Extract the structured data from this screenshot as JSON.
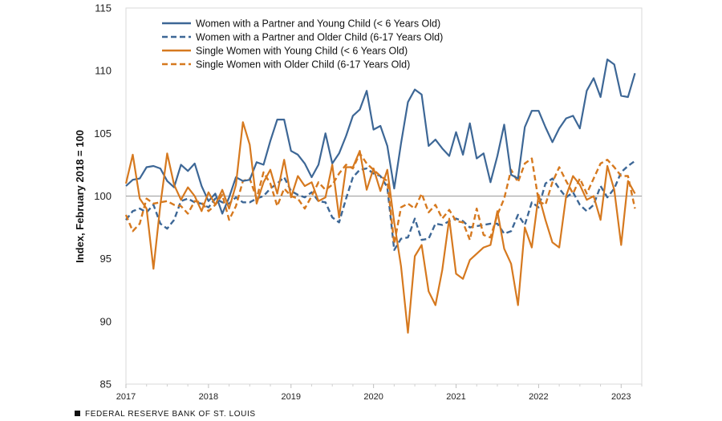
{
  "chart_data": {
    "type": "line",
    "title": "",
    "xlabel": "",
    "ylabel": "Index, February  2018 = 100",
    "ylim": [
      85,
      115
    ],
    "yticks": [
      85,
      90,
      95,
      100,
      105,
      110,
      115
    ],
    "xlim": [
      2017.0,
      2023.25
    ],
    "xticks": [
      "2017",
      "2018",
      "2019",
      "2020",
      "2021",
      "2022",
      "2023"
    ],
    "reference_line": 100,
    "grid": false,
    "legend_position": "top-left",
    "x": [
      2017.0,
      2017.083,
      2017.167,
      2017.25,
      2017.333,
      2017.417,
      2017.5,
      2017.583,
      2017.667,
      2017.75,
      2017.833,
      2017.917,
      2018.0,
      2018.083,
      2018.167,
      2018.25,
      2018.333,
      2018.417,
      2018.5,
      2018.583,
      2018.667,
      2018.75,
      2018.833,
      2018.917,
      2019.0,
      2019.083,
      2019.167,
      2019.25,
      2019.333,
      2019.417,
      2019.5,
      2019.583,
      2019.667,
      2019.75,
      2019.833,
      2019.917,
      2020.0,
      2020.083,
      2020.167,
      2020.25,
      2020.333,
      2020.417,
      2020.5,
      2020.583,
      2020.667,
      2020.75,
      2020.833,
      2020.917,
      2021.0,
      2021.083,
      2021.167,
      2021.25,
      2021.333,
      2021.417,
      2021.5,
      2021.583,
      2021.667,
      2021.75,
      2021.833,
      2021.917,
      2022.0,
      2022.083,
      2022.167,
      2022.25,
      2022.333,
      2022.417,
      2022.5,
      2022.583,
      2022.667,
      2022.75,
      2022.833,
      2022.917,
      2023.0,
      2023.083,
      2023.167
    ],
    "series": [
      {
        "name": "Women with a Partner and Young Child (< 6 Years Old)",
        "color": "#3d6796",
        "dash": "solid",
        "values": [
          100.8,
          101.3,
          101.4,
          102.3,
          102.4,
          102.2,
          101.2,
          100.7,
          102.5,
          102.0,
          102.6,
          100.8,
          99.6,
          100.2,
          98.6,
          99.9,
          101.5,
          101.2,
          101.3,
          102.7,
          102.5,
          104.4,
          106.1,
          106.1,
          103.6,
          103.3,
          102.6,
          101.5,
          102.5,
          105.0,
          102.6,
          103.4,
          104.8,
          106.4,
          106.9,
          108.4,
          105.3,
          105.6,
          104.0,
          100.6,
          104.2,
          107.5,
          108.5,
          108.1,
          104.0,
          104.5,
          103.8,
          103.2,
          105.1,
          103.3,
          105.8,
          103.0,
          103.4,
          101.1,
          103.2,
          105.7,
          101.7,
          101.4,
          105.5,
          106.8,
          106.8,
          105.5,
          104.3,
          105.4,
          106.2,
          106.4,
          105.4,
          108.4,
          109.4,
          107.9,
          110.9,
          110.5,
          108.0,
          107.9,
          109.8
        ]
      },
      {
        "name": "Women with a Partner and Older Child (6-17 Years Old)",
        "color": "#3d6796",
        "dash": "dashed",
        "values": [
          98.1,
          98.8,
          99.0,
          98.7,
          99.3,
          97.8,
          97.4,
          98.1,
          99.6,
          99.8,
          99.5,
          99.4,
          99.1,
          99.8,
          99.5,
          99.4,
          99.9,
          99.5,
          99.5,
          99.8,
          100.0,
          100.6,
          101.0,
          101.5,
          100.4,
          100.1,
          99.9,
          100.3,
          99.6,
          99.5,
          98.3,
          97.9,
          99.8,
          101.5,
          102.1,
          102.2,
          101.8,
          101.6,
          100.7,
          95.7,
          96.6,
          96.7,
          98.2,
          96.5,
          96.6,
          97.8,
          97.7,
          98.0,
          98.2,
          98.0,
          97.5,
          97.6,
          97.7,
          97.8,
          97.8,
          97.0,
          97.2,
          98.5,
          97.7,
          99.5,
          99.1,
          101.0,
          101.4,
          100.6,
          99.9,
          100.3,
          99.3,
          98.8,
          99.3,
          100.8,
          99.9,
          100.6,
          101.9,
          102.4,
          102.8
        ]
      },
      {
        "name": "Single Women with Young Child (< 6 Years Old)",
        "color": "#d6791f",
        "dash": "solid",
        "values": [
          101.0,
          103.3,
          99.8,
          99.0,
          94.2,
          99.3,
          103.4,
          100.9,
          99.7,
          100.7,
          100.0,
          98.8,
          100.3,
          99.3,
          100.5,
          99.0,
          100.9,
          105.9,
          104.1,
          99.4,
          101.1,
          102.1,
          100.2,
          102.9,
          99.9,
          101.6,
          100.8,
          101.1,
          99.6,
          99.9,
          102.5,
          98.3,
          102.3,
          102.3,
          103.6,
          100.5,
          102.2,
          100.4,
          102.1,
          97.9,
          94.4,
          89.1,
          95.2,
          96.1,
          92.4,
          91.3,
          94.1,
          98.2,
          93.8,
          93.4,
          94.9,
          95.4,
          95.9,
          96.1,
          98.8,
          95.8,
          94.6,
          91.3,
          97.5,
          95.9,
          100.1,
          98.1,
          96.3,
          95.9,
          100.0,
          101.6,
          100.9,
          99.7,
          100.0,
          98.1,
          102.4,
          100.5,
          96.1,
          101.2,
          100.2
        ]
      },
      {
        "name": "Single Women with Older Child (6-17 Years Old)",
        "color": "#d6791f",
        "dash": "dashed",
        "values": [
          98.5,
          97.2,
          97.8,
          99.8,
          99.4,
          99.5,
          99.6,
          99.3,
          99.2,
          98.6,
          99.6,
          99.5,
          98.8,
          99.3,
          100.1,
          98.1,
          99.2,
          101.2,
          101.4,
          99.8,
          101.9,
          101.0,
          99.2,
          100.6,
          100.0,
          99.8,
          99.0,
          100.0,
          101.1,
          100.5,
          100.9,
          101.8,
          102.5,
          102.2,
          103.4,
          102.6,
          102.1,
          101.6,
          101.2,
          96.2,
          99.1,
          99.4,
          99.0,
          100.2,
          98.7,
          99.3,
          98.2,
          98.9,
          98.0,
          97.9,
          96.5,
          99.0,
          96.9,
          96.7,
          98.5,
          99.8,
          102.1,
          101.1,
          102.6,
          103.0,
          99.6,
          99.3,
          101.1,
          102.3,
          101.2,
          100.2,
          101.4,
          100.2,
          101.4,
          102.6,
          102.9,
          102.3,
          101.6,
          101.6,
          99.0
        ]
      }
    ]
  },
  "footer": {
    "source": "FEDERAL RESERVE BANK OF ST. LOUIS"
  }
}
